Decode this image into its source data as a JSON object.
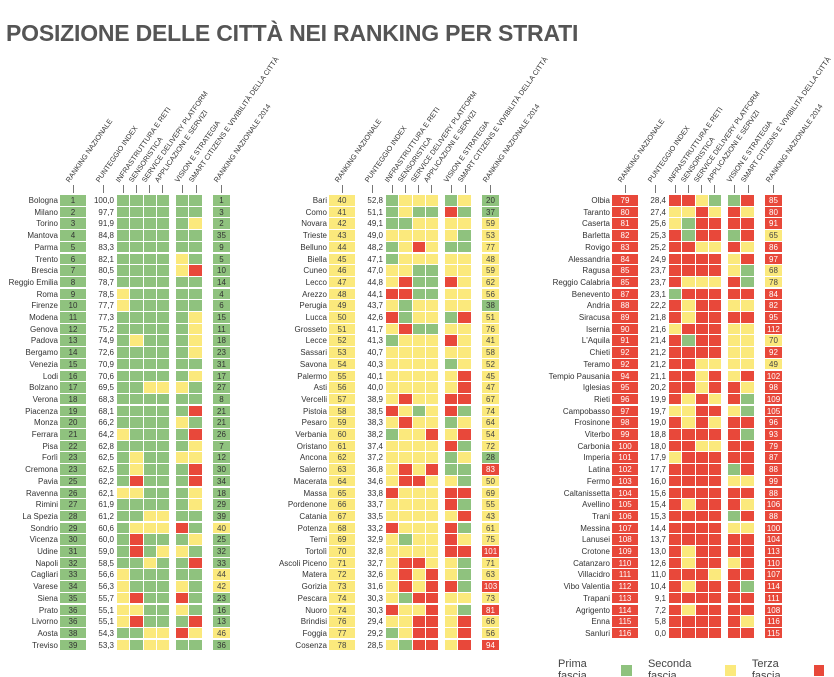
{
  "title": "POSIZIONE DELLE CITTÀ NEI RANKING PER STRATI",
  "colors": {
    "G": "#8fc27e",
    "Y": "#fbe97c",
    "R": "#e8483a"
  },
  "chart_data": {
    "type": "heatmap",
    "title": "POSIZIONE DELLE CITTÀ NEI RANKING PER STRATI",
    "columns": [
      "RANKING NAZIONALE",
      "PUNTEGGIO INDEX",
      "INFRASTRUTTURA E RETI",
      "SENSORISTICA",
      "SERVICE DELIVERY PLATFORM",
      "APPLICAZIONI E SERVIZI",
      "VISION E STRATEGIA",
      "SMART CITIZENS E VIVIBILITÀ DELLA CITTÀ",
      "RANKING NAZIONALE 2014"
    ],
    "legend": [
      {
        "label": "Prima fascia",
        "code": "G"
      },
      {
        "label": "Seconda  fascia",
        "code": "Y"
      },
      {
        "label": "Terza fascia",
        "code": "R"
      }
    ],
    "row_format": [
      "city",
      "rank",
      "score",
      "strati (G=prima, Y=seconda, R=terza)",
      "rank_2014"
    ],
    "panels": [
      [
        [
          "Bologna",
          1,
          "100,0",
          "GGGGGG",
          1
        ],
        [
          "Milano",
          2,
          "97,7",
          "GGGGGG",
          3
        ],
        [
          "Torino",
          3,
          "91,9",
          "GGGGGY",
          2
        ],
        [
          "Mantova",
          4,
          "84,8",
          "GGGGGG",
          35
        ],
        [
          "Parma",
          5,
          "83,3",
          "GGGGGG",
          9
        ],
        [
          "Trento",
          6,
          "82,1",
          "GGGGYG",
          5
        ],
        [
          "Brescia",
          7,
          "80,5",
          "GGGGYR",
          10
        ],
        [
          "Reggio  Emilia",
          8,
          "78,7",
          "GGGGGG",
          14
        ],
        [
          "Roma",
          9,
          "78,5",
          "YGGGGG",
          4
        ],
        [
          "Firenze",
          10,
          "77,7",
          "YGGGGG",
          6
        ],
        [
          "Modena",
          11,
          "77,3",
          "GGGGGY",
          15
        ],
        [
          "Genova",
          12,
          "75,2",
          "GGGGGY",
          11
        ],
        [
          "Padova",
          13,
          "74,9",
          "GYGGGY",
          18
        ],
        [
          "Bergamo",
          14,
          "72,6",
          "GGGGGY",
          23
        ],
        [
          "Venezia",
          15,
          "70,9",
          "GGGGGG",
          31
        ],
        [
          "Lodi",
          16,
          "70,6",
          "GGGGGY",
          17
        ],
        [
          "Bolzano",
          17,
          "69,5",
          "GGYYYG",
          27
        ],
        [
          "Verona",
          18,
          "68,3",
          "GGGGGG",
          8
        ],
        [
          "Piacenza",
          19,
          "68,1",
          "GGGGGR",
          21
        ],
        [
          "Monza",
          20,
          "66,2",
          "GGGGYG",
          21
        ],
        [
          "Ferrara",
          21,
          "64,2",
          "YGGGGR",
          26
        ],
        [
          "Pisa",
          22,
          "62,8",
          "GGGGGY",
          7
        ],
        [
          "Forlì",
          23,
          "62,5",
          "GYGGYY",
          12
        ],
        [
          "Cremona",
          23,
          "62,5",
          "GYGGGR",
          30
        ],
        [
          "Pavia",
          25,
          "62,2",
          "GRGGGR",
          34
        ],
        [
          "Ravenna",
          26,
          "62,1",
          "YYGGGY",
          18
        ],
        [
          "Rimini",
          27,
          "61,9",
          "GGGGGY",
          29
        ],
        [
          "La Spezia",
          28,
          "61,2",
          "GGYYGG",
          39
        ],
        [
          "Sondrio",
          29,
          "60,6",
          "GYYYRG",
          40
        ],
        [
          "Vicenza",
          30,
          "60,0",
          "GRGGGY",
          25
        ],
        [
          "Udine",
          31,
          "59,0",
          "GRGYYG",
          32
        ],
        [
          "Napoli",
          32,
          "58,5",
          "GGYGGR",
          33
        ],
        [
          "Cagliari",
          33,
          "56,6",
          "YGGGGG",
          44
        ],
        [
          "Varese",
          34,
          "56,3",
          "YGGGYG",
          42
        ],
        [
          "Siena",
          35,
          "55,7",
          "YRGGRG",
          23
        ],
        [
          "Prato",
          36,
          "55,1",
          "YYGGYG",
          16
        ],
        [
          "Livorno",
          36,
          "55,1",
          "YRGGGR",
          13
        ],
        [
          "Aosta",
          38,
          "54,3",
          "GGYYRY",
          46
        ],
        [
          "Treviso",
          39,
          "53,3",
          "YGYYGG",
          36
        ]
      ],
      [
        [
          "Bari",
          40,
          "52,8",
          "GYYYGY",
          20
        ],
        [
          "Como",
          41,
          "51,1",
          "GYGGRG",
          37
        ],
        [
          "Novara",
          42,
          "49,1",
          "GGYYYY",
          59
        ],
        [
          "Trieste",
          43,
          "49,0",
          "YYYYYG",
          53
        ],
        [
          "Belluno",
          44,
          "48,2",
          "GYRYGG",
          77
        ],
        [
          "Biella",
          45,
          "47,1",
          "GYYYYY",
          48
        ],
        [
          "Cuneo",
          46,
          "47,0",
          "YYGGYY",
          59
        ],
        [
          "Lecco",
          47,
          "44,8",
          "YRGGRY",
          62
        ],
        [
          "Arezzo",
          48,
          "44,1",
          "RRGGYY",
          56
        ],
        [
          "Perugia",
          49,
          "43,7",
          "YGYYYY",
          38
        ],
        [
          "Lucca",
          50,
          "42,6",
          "RGYYGR",
          51
        ],
        [
          "Grosseto",
          51,
          "41,7",
          "YRGGYY",
          76
        ],
        [
          "Lecce",
          52,
          "41,3",
          "GYYYRY",
          41
        ],
        [
          "Sassari",
          53,
          "40,7",
          "YYYYYY",
          58
        ],
        [
          "Savona",
          54,
          "40,3",
          "YYYYGY",
          52
        ],
        [
          "Palermo",
          55,
          "40,1",
          "YYYYYR",
          45
        ],
        [
          "Asti",
          56,
          "40,0",
          "YYYYYR",
          47
        ],
        [
          "Vercelli",
          57,
          "38,9",
          "YRYYRR",
          67
        ],
        [
          "Pistoia",
          58,
          "38,5",
          "RYGYRG",
          74
        ],
        [
          "Pesaro",
          59,
          "38,3",
          "YRYYGY",
          64
        ],
        [
          "Verbania",
          60,
          "38,2",
          "GYYRYR",
          54
        ],
        [
          "Oristano",
          61,
          "37,4",
          "YYYYRG",
          72
        ],
        [
          "Ancona",
          62,
          "37,2",
          "YYYYGY",
          28
        ],
        [
          "Salerno",
          63,
          "36,8",
          "YRYRGG",
          83
        ],
        [
          "Macerata",
          64,
          "34,6",
          "YRRYYG",
          50
        ],
        [
          "Massa",
          65,
          "33,8",
          "RYYYRR",
          69
        ],
        [
          "Pordenone",
          66,
          "33,7",
          "YYYYRG",
          55
        ],
        [
          "Catania",
          67,
          "33,5",
          "YYYYYR",
          43
        ],
        [
          "Potenza",
          68,
          "33,2",
          "RYYYRG",
          61
        ],
        [
          "Terni",
          69,
          "32,9",
          "YGYYRY",
          75
        ],
        [
          "Tortolì",
          70,
          "32,8",
          "YYYYRR",
          101
        ],
        [
          "Ascoli Piceno",
          71,
          "32,7",
          "YRRYYG",
          71
        ],
        [
          "Matera",
          72,
          "32,6",
          "YRYRYG",
          63
        ],
        [
          "Gorizia",
          73,
          "31,6",
          "YRYRRG",
          103
        ],
        [
          "Pescara",
          74,
          "30,3",
          "YGRRYY",
          73
        ],
        [
          "Nuoro",
          74,
          "30,3",
          "RYYRYG",
          81
        ],
        [
          "Brindisi",
          76,
          "29,4",
          "YYRRYR",
          66
        ],
        [
          "Foggia",
          77,
          "29,2",
          "GYRRYR",
          56
        ],
        [
          "Cosenza",
          78,
          "28,5",
          "YGRRYR",
          94
        ]
      ],
      [
        [
          "Olbia",
          79,
          "28,4",
          "RRYGGR",
          85
        ],
        [
          "Taranto",
          80,
          "27,4",
          "YYRYRY",
          80
        ],
        [
          "Caserta",
          81,
          "25,6",
          "YGRRRR",
          91
        ],
        [
          "Barletta",
          82,
          "25,3",
          "RGRRGR",
          65
        ],
        [
          "Rovigo",
          83,
          "25,2",
          "RRYYRY",
          86
        ],
        [
          "Alessandria",
          84,
          "24,9",
          "RRRRYR",
          97
        ],
        [
          "Ragusa",
          85,
          "23,7",
          "RRRRYG",
          68
        ],
        [
          "Reggio  Calabria",
          85,
          "23,7",
          "RYYYRG",
          78
        ],
        [
          "Benevento",
          87,
          "23,1",
          "GRRRRR",
          84
        ],
        [
          "Andria",
          88,
          "22,2",
          "RYRRYY",
          82
        ],
        [
          "Siracusa",
          89,
          "21,8",
          "RYRRRR",
          95
        ],
        [
          "Isernia",
          90,
          "21,6",
          "YRRRYY",
          112
        ],
        [
          "L'Aquila",
          91,
          "21,4",
          "RGRRYY",
          70
        ],
        [
          "Chieti",
          92,
          "21,2",
          "RRRRYY",
          92
        ],
        [
          "Teramo",
          92,
          "21,2",
          "RRYYYY",
          49
        ],
        [
          "Tempio  Pausania",
          94,
          "21,1",
          "RRYRYR",
          102
        ],
        [
          "Iglesias",
          95,
          "20,2",
          "RRYRRY",
          98
        ],
        [
          "Rieti",
          96,
          "19,9",
          "RYRYRG",
          109
        ],
        [
          "Campobasso",
          97,
          "19,7",
          "YYRRYG",
          105
        ],
        [
          "Frosinone",
          98,
          "19,0",
          "RYRYRR",
          96
        ],
        [
          "Viterbo",
          99,
          "18,8",
          "RRRRRG",
          93
        ],
        [
          "Carbonia",
          100,
          "18,0",
          "RRYYRR",
          79
        ],
        [
          "Imperia",
          101,
          "17,9",
          "YRRRRR",
          87
        ],
        [
          "Latina",
          102,
          "17,7",
          "RRRRGR",
          88
        ],
        [
          "Fermo",
          103,
          "16,0",
          "RRRRYY",
          99
        ],
        [
          "Caltanissetta",
          104,
          "15,6",
          "RRRRRR",
          88
        ],
        [
          "Avellino",
          105,
          "15,4",
          "RYRRRY",
          106
        ],
        [
          "Trani",
          106,
          "15,3",
          "RRRRGR",
          88
        ],
        [
          "Messina",
          107,
          "14,4",
          "RRRRYY",
          100
        ],
        [
          "Lanusei",
          108,
          "13,7",
          "RRRRRR",
          104
        ],
        [
          "Crotone",
          109,
          "13,0",
          "RYRRRR",
          113
        ],
        [
          "Catanzaro",
          110,
          "12,6",
          "RYRRYR",
          110
        ],
        [
          "Villacidro",
          111,
          "11,0",
          "RRRYRR",
          107
        ],
        [
          "Vibo  Valentia",
          112,
          "10,4",
          "RYRRRG",
          114
        ],
        [
          "Trapani",
          113,
          "9,1",
          "RRRRRR",
          111
        ],
        [
          "Agrigento",
          114,
          "7,2",
          "RYRRRR",
          108
        ],
        [
          "Enna",
          115,
          "5,8",
          "RRRRRY",
          116
        ],
        [
          "Sanluri",
          116,
          "0,0",
          "RRRRRR",
          115
        ]
      ]
    ]
  }
}
